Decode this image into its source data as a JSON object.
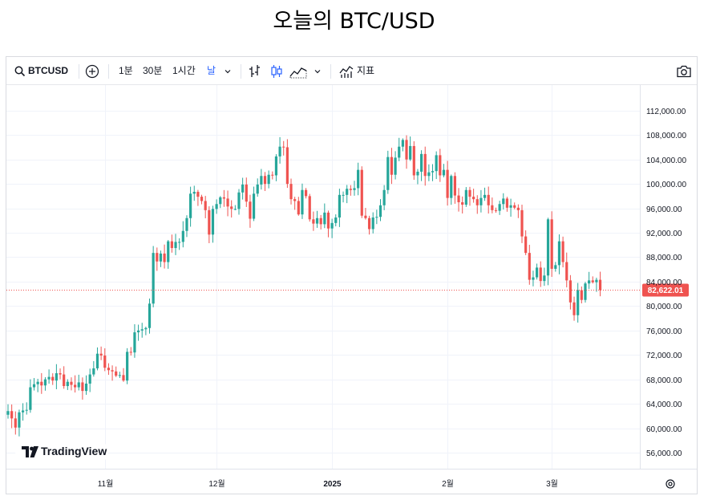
{
  "page_title": "오늘의 BTC/USD",
  "toolbar": {
    "symbol": "BTCUSD",
    "search_icon": "search-icon",
    "add_icon": "plus-circle-icon",
    "intervals": [
      "1분",
      "30분",
      "1시간",
      "날"
    ],
    "active_interval": "날",
    "chart_type_icons": [
      "bar-chart-icon",
      "candlestick-icon",
      "area-chart-icon"
    ],
    "indicators_label": "지표",
    "camera_icon": "camera-icon"
  },
  "branding": {
    "logo_text": "TradingView"
  },
  "colors": {
    "up": "#26a69a",
    "down": "#ef5350",
    "grid": "#f0f3fa",
    "price_line": "#ef5350"
  },
  "chart_data": {
    "type": "candlestick",
    "title": "오늘의 BTC/USD",
    "symbol": "BTCUSD",
    "ylim": [
      53500,
      115000
    ],
    "y_ticks": [
      112000,
      108000,
      104000,
      100000,
      96000,
      92000,
      88000,
      84000,
      80000,
      76000,
      72000,
      68000,
      64000,
      60000,
      56000
    ],
    "y_tick_labels": [
      "112,000.00",
      "108,000.00",
      "104,000.00",
      "100,000.00",
      "96,000.00",
      "92,000.00",
      "88,000.00",
      "84,000.00",
      "80,000.00",
      "76,000.00",
      "72,000.00",
      "68,000.00",
      "64,000.00",
      "60,000.00",
      "56,000.00"
    ],
    "x_ticks": [
      {
        "label": "11월",
        "index": 26,
        "bold": false
      },
      {
        "label": "12월",
        "index": 56,
        "bold": false
      },
      {
        "label": "2025",
        "index": 87,
        "bold": true
      },
      {
        "label": "2월",
        "index": 118,
        "bold": false
      },
      {
        "label": "3월",
        "index": 146,
        "bold": false
      }
    ],
    "last_price": 82622.01,
    "last_price_label": "82,622.01",
    "closes": [
      62800,
      61600,
      60100,
      62600,
      62900,
      63000,
      66700,
      67200,
      67600,
      67000,
      68000,
      68400,
      67800,
      69000,
      68800,
      66900,
      67600,
      67100,
      66700,
      67500,
      66100,
      67300,
      68800,
      69800,
      72200,
      71900,
      69900,
      69500,
      69300,
      68600,
      68700,
      67800,
      72500,
      72400,
      75700,
      76000,
      76200,
      76400,
      80400,
      88700,
      87300,
      88600,
      87200,
      90600,
      89500,
      90500,
      90500,
      92300,
      94400,
      98400,
      98700,
      97900,
      97200,
      95700,
      91700,
      95900,
      96700,
      97800,
      97600,
      96300,
      95900,
      95900,
      98600,
      99900,
      97100,
      94300,
      98400,
      99900,
      101300,
      100000,
      101500,
      101400,
      104500,
      106100,
      106000,
      100000,
      97500,
      97200,
      95000,
      99000,
      98000,
      94200,
      93500,
      94400,
      93400,
      95300,
      92700,
      93600,
      94500,
      98200,
      98200,
      99200,
      99000,
      99300,
      102300,
      94800,
      94400,
      92600,
      94500,
      94600,
      96500,
      99000,
      104400,
      101500,
      104300,
      106100,
      107200,
      104000,
      106200,
      101400,
      102000,
      104900,
      101300,
      101900,
      102100,
      104700,
      101400,
      102300,
      97700,
      101300,
      98100,
      97000,
      96600,
      99000,
      97900,
      97500,
      96500,
      97700,
      98200,
      96500,
      95700,
      95600,
      96700,
      97600,
      96100,
      96500,
      96100,
      95700,
      91400,
      88700,
      84300,
      84700,
      86300,
      84100,
      85000,
      94200,
      86100,
      86700,
      90600,
      87200,
      84200,
      80600,
      78500,
      82600,
      81000,
      83700,
      84200,
      83900,
      84300,
      82622
    ]
  }
}
